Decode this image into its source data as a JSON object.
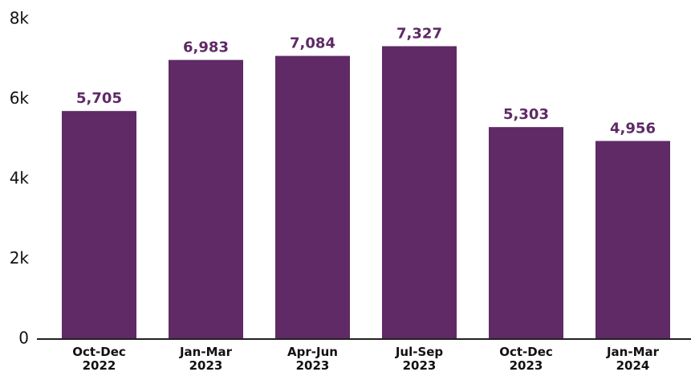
{
  "chart_data": {
    "type": "bar",
    "title": "",
    "xlabel": "",
    "ylabel": "",
    "categories": [
      [
        "Oct-Dec",
        "2022"
      ],
      [
        "Jan-Mar",
        "2023"
      ],
      [
        "Apr-Jun",
        "2023"
      ],
      [
        "Jul-Sep",
        "2023"
      ],
      [
        "Oct-Dec",
        "2023"
      ],
      [
        "Jan-Mar",
        "2024"
      ]
    ],
    "values": [
      5705,
      6983,
      7084,
      7327,
      5303,
      4956
    ],
    "data_labels": [
      "5,705",
      "6,983",
      "7,084",
      "7,327",
      "5,303",
      "4,956"
    ],
    "ylim": [
      0,
      8000
    ],
    "yticks": [
      0,
      2000,
      4000,
      6000,
      8000
    ],
    "ytick_labels": [
      "0",
      "2k",
      "4k",
      "6k",
      "8k"
    ],
    "grid": false,
    "legend": "none",
    "bar_color": "#5f2a66",
    "label_color": "#5f2a66"
  }
}
